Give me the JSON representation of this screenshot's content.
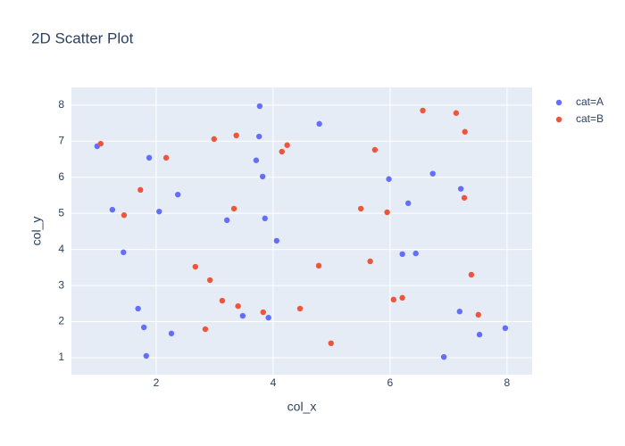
{
  "chart_data": {
    "type": "scatter",
    "title": "2D Scatter Plot",
    "x_label": "col_x",
    "y_label": "col_y",
    "xlim": [
      0.55,
      8.43
    ],
    "ylim": [
      0.53,
      8.49
    ],
    "xticks": [
      2,
      4,
      6,
      8
    ],
    "yticks": [
      1,
      2,
      3,
      4,
      5,
      6,
      7,
      8
    ],
    "grid": true,
    "legend": "right",
    "series": [
      {
        "name": "cat=A",
        "color": "#636efa",
        "x": [
          0.99,
          1.25,
          1.44,
          1.69,
          1.79,
          1.83,
          1.88,
          2.05,
          2.26,
          2.37,
          3.21,
          3.48,
          3.71,
          3.77,
          3.76,
          3.82,
          3.86,
          3.92,
          4.06,
          4.79,
          5.98,
          6.21,
          6.44,
          6.31,
          6.73,
          6.92,
          7.21,
          7.19,
          7.53,
          7.97
        ],
        "values": [
          6.86,
          5.1,
          3.92,
          2.36,
          1.84,
          1.05,
          6.54,
          5.05,
          1.67,
          5.52,
          4.81,
          2.16,
          6.47,
          7.97,
          7.13,
          6.02,
          4.86,
          2.11,
          4.24,
          7.48,
          5.95,
          3.87,
          3.89,
          5.28,
          6.1,
          1.02,
          5.68,
          2.28,
          1.64,
          1.82
        ]
      },
      {
        "name": "cat=B",
        "color": "#EF553B",
        "x": [
          1.05,
          1.45,
          1.73,
          2.17,
          2.67,
          2.84,
          2.92,
          2.99,
          3.13,
          3.33,
          3.37,
          3.4,
          3.83,
          4.15,
          4.24,
          4.46,
          4.78,
          4.99,
          5.5,
          5.66,
          5.74,
          5.95,
          6.06,
          6.21,
          6.56,
          7.13,
          7.28,
          7.27,
          7.39,
          7.51
        ],
        "values": [
          6.93,
          4.95,
          5.65,
          6.54,
          3.52,
          1.79,
          3.15,
          7.06,
          2.58,
          5.13,
          7.16,
          2.43,
          2.26,
          6.71,
          6.89,
          2.36,
          3.55,
          1.4,
          5.13,
          3.67,
          6.76,
          5.03,
          2.61,
          2.66,
          7.85,
          7.78,
          7.26,
          5.43,
          3.3,
          2.19
        ]
      }
    ]
  }
}
